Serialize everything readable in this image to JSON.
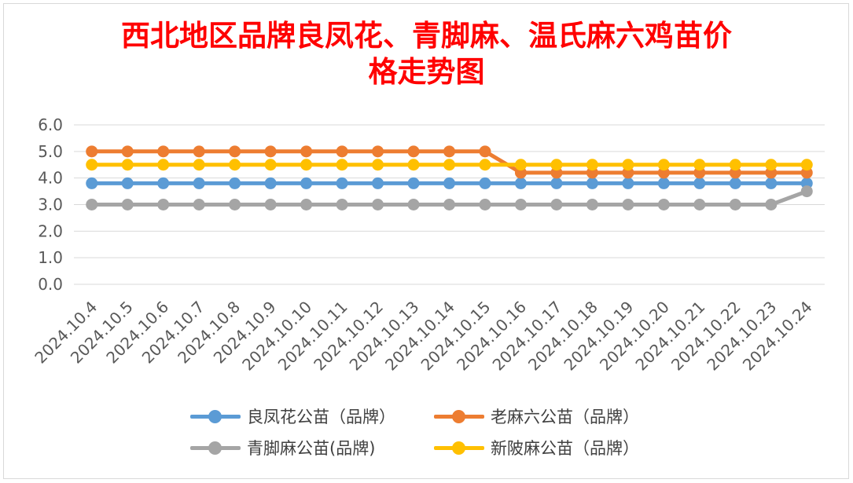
{
  "chart_data": {
    "type": "line",
    "title": "西北地区品牌良凤花、青脚麻、温氏麻六鸡苗价格走势图",
    "title_lines": [
      "西北地区品牌良凤花、青脚麻、温氏麻六鸡苗价",
      "格走势图"
    ],
    "categories": [
      "2024.10.4",
      "2024.10.5",
      "2024.10.6",
      "2024.10.7",
      "2024.10.8",
      "2024.10.9",
      "2024.10.10",
      "2024.10.11",
      "2024.10.12",
      "2024.10.13",
      "2024.10.14",
      "2024.10.15",
      "2024.10.16",
      "2024.10.17",
      "2024.10.18",
      "2024.10.19",
      "2024.10.20",
      "2024.10.21",
      "2024.10.22",
      "2024.10.23",
      "2024.10.24"
    ],
    "y_ticks": [
      "6.0",
      "5.0",
      "4.0",
      "3.0",
      "2.0",
      "1.0",
      "0.0"
    ],
    "ylim": [
      0,
      6
    ],
    "grid": true,
    "legend_position": "bottom",
    "series": [
      {
        "name": "良凤花公苗（品牌）",
        "color": "#5b9bd5",
        "values": [
          3.8,
          3.8,
          3.8,
          3.8,
          3.8,
          3.8,
          3.8,
          3.8,
          3.8,
          3.8,
          3.8,
          3.8,
          3.8,
          3.8,
          3.8,
          3.8,
          3.8,
          3.8,
          3.8,
          3.8,
          3.8
        ]
      },
      {
        "name": "老麻六公苗（品牌）",
        "color": "#ed7d31",
        "values": [
          5.0,
          5.0,
          5.0,
          5.0,
          5.0,
          5.0,
          5.0,
          5.0,
          5.0,
          5.0,
          5.0,
          5.0,
          4.2,
          4.2,
          4.2,
          4.2,
          4.2,
          4.2,
          4.2,
          4.2,
          4.2
        ]
      },
      {
        "name": "青脚麻公苗(品牌)",
        "color": "#a5a5a5",
        "values": [
          3.0,
          3.0,
          3.0,
          3.0,
          3.0,
          3.0,
          3.0,
          3.0,
          3.0,
          3.0,
          3.0,
          3.0,
          3.0,
          3.0,
          3.0,
          3.0,
          3.0,
          3.0,
          3.0,
          3.0,
          3.5
        ]
      },
      {
        "name": "新陂麻公苗（品牌）",
        "color": "#ffc000",
        "values": [
          4.5,
          4.5,
          4.5,
          4.5,
          4.5,
          4.5,
          4.5,
          4.5,
          4.5,
          4.5,
          4.5,
          4.5,
          4.5,
          4.5,
          4.5,
          4.5,
          4.5,
          4.5,
          4.5,
          4.5,
          4.5
        ]
      }
    ],
    "draw_order": [
      0,
      1,
      3,
      2
    ]
  }
}
